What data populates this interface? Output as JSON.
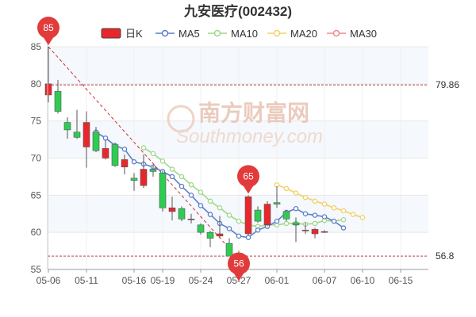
{
  "title": "九安医疗(002432)",
  "legend": [
    {
      "label": "日K",
      "color": "#e8272c",
      "kind": "candle"
    },
    {
      "label": "MA5",
      "color": "#5b7ec7",
      "kind": "line"
    },
    {
      "label": "MA10",
      "color": "#9fd88a",
      "kind": "line"
    },
    {
      "label": "MA20",
      "color": "#f4d067",
      "kind": "line"
    },
    {
      "label": "MA30",
      "color": "#ef8a8a",
      "kind": "line"
    }
  ],
  "watermark": {
    "cn": "南方财富网",
    "en": "Southmoney.com"
  },
  "colors": {
    "up": "#e8272c",
    "down": "#2ecc52",
    "grid": "#e8e8e8",
    "band": "#f5f8fc",
    "hline": "#b84040"
  },
  "chart_data": {
    "type": "candlestick",
    "title": "九安医疗(002432)",
    "ylim": [
      55,
      85
    ],
    "y_ticks": [
      55,
      60,
      65,
      70,
      75,
      80,
      85
    ],
    "x_tick_labels": [
      "05-06",
      "05-11",
      "05-16",
      "05-19",
      "05-24",
      "05-27",
      "06-01",
      "06-07",
      "06-10",
      "06-15"
    ],
    "x_tick_index": [
      0,
      4,
      9,
      12,
      16,
      20,
      24,
      29,
      33,
      37
    ],
    "candles": [
      {
        "o": 78.5,
        "c": 80.0,
        "h": 85.0,
        "l": 77.5
      },
      {
        "o": 79.0,
        "c": 76.3,
        "h": 80.5,
        "l": 76.0
      },
      {
        "o": 74.8,
        "c": 73.8,
        "h": 75.5,
        "l": 72.6
      },
      {
        "o": 73.5,
        "c": 72.8,
        "h": 76.5,
        "l": 72.6
      },
      {
        "o": 71.5,
        "c": 74.8,
        "h": 76.3,
        "l": 68.7
      },
      {
        "o": 73.5,
        "c": 71.0,
        "h": 74.2,
        "l": 70.8
      },
      {
        "o": 70.0,
        "c": 71.3,
        "h": 72.5,
        "l": 69.8
      },
      {
        "o": 71.8,
        "c": 69.0,
        "h": 72.0,
        "l": 68.8
      },
      {
        "o": 68.8,
        "c": 69.8,
        "h": 70.5,
        "l": 67.8
      },
      {
        "o": 67.3,
        "c": 67.0,
        "h": 68.0,
        "l": 65.6
      },
      {
        "o": 66.3,
        "c": 68.5,
        "h": 70.5,
        "l": 66.0
      },
      {
        "o": 68.5,
        "c": 68.2,
        "h": 69.0,
        "l": 67.5
      },
      {
        "o": 68.0,
        "c": 63.3,
        "h": 68.3,
        "l": 62.8
      },
      {
        "o": 62.8,
        "c": 63.3,
        "h": 64.8,
        "l": 61.6
      },
      {
        "o": 63.2,
        "c": 61.8,
        "h": 63.5,
        "l": 61.5
      },
      {
        "o": 61.8,
        "c": 61.8,
        "h": 62.5,
        "l": 61.2
      },
      {
        "o": 61.0,
        "c": 60.0,
        "h": 61.2,
        "l": 59.7
      },
      {
        "o": 60.0,
        "c": 59.2,
        "h": 60.2,
        "l": 58.0
      },
      {
        "o": 59.5,
        "c": 59.8,
        "h": 62.2,
        "l": 59.3
      },
      {
        "o": 58.5,
        "c": 56.8,
        "h": 59.2,
        "l": 56.8
      },
      {
        "o": 56.8,
        "c": 57.2,
        "h": 57.5,
        "l": 56.0
      },
      {
        "o": 59.8,
        "c": 64.8,
        "h": 65.0,
        "l": 59.6
      },
      {
        "o": 63.0,
        "c": 61.5,
        "h": 63.5,
        "l": 61.3
      },
      {
        "o": 61.0,
        "c": 63.8,
        "h": 64.2,
        "l": 60.8
      },
      {
        "o": 64.0,
        "c": 63.8,
        "h": 66.2,
        "l": 63.3
      },
      {
        "o": 62.8,
        "c": 61.8,
        "h": 63.0,
        "l": 61.5
      },
      {
        "o": 61.3,
        "c": 61.0,
        "h": 62.0,
        "l": 58.7
      },
      {
        "o": 60.2,
        "c": 60.3,
        "h": 61.3,
        "l": 59.8
      },
      {
        "o": 59.8,
        "c": 60.4,
        "h": 60.6,
        "l": 59.2
      },
      {
        "o": 60.1,
        "c": 60.1,
        "h": 60.3,
        "l": 59.9
      }
    ],
    "candle_positions": [
      0,
      1,
      2,
      3,
      4,
      5,
      6,
      7,
      8,
      9,
      10,
      11,
      12,
      13,
      14,
      15,
      16,
      17,
      18,
      19,
      20,
      21,
      22,
      23,
      24,
      25,
      26,
      27,
      28,
      29
    ],
    "ma5": {
      "start": 5,
      "values": [
        73.5,
        72.7,
        71.7,
        71.2,
        69.5,
        69.2,
        68.8,
        68.2,
        67.5,
        66.2,
        65.0,
        63.6,
        62.4,
        61.2,
        60.5,
        59.5,
        59.3,
        60.3,
        60.8,
        61.5,
        62.7,
        63.2,
        62.5,
        62.3,
        62.1,
        61.5,
        60.6
      ]
    },
    "ma10": {
      "start": 10,
      "values": [
        71.4,
        70.6,
        69.6,
        68.5,
        67.5,
        66.4,
        65.4,
        64.2,
        63.3,
        62.3,
        61.5,
        61.0,
        60.8,
        61.0,
        61.0,
        61.2,
        61.2,
        61.1,
        61.2,
        61.6,
        61.5,
        61.7
      ]
    },
    "ma20": {
      "start": 24,
      "values": [
        66.4,
        65.9,
        65.3,
        64.7,
        64.2,
        63.8,
        63.3,
        62.9,
        62.4,
        62.0
      ]
    },
    "ma30": {
      "start": 0,
      "values": [
        85.0,
        81.9,
        78.8,
        75.8,
        72.7,
        69.6,
        66.5,
        63.4,
        60.3,
        57.3,
        56.4
      ]
    },
    "ma30_positions": [
      0,
      2,
      4,
      6,
      8,
      10,
      12,
      14,
      16,
      18,
      20
    ],
    "hlines": [
      {
        "value": 79.86,
        "label": "79.86"
      },
      {
        "value": 56.8,
        "label": "56.8"
      }
    ],
    "markers": [
      {
        "index": 0,
        "value": 85,
        "label": "85",
        "direction": "down"
      },
      {
        "index": 20,
        "value": 56,
        "label": "56",
        "direction": "up"
      },
      {
        "index": 21,
        "value": 65,
        "label": "65",
        "direction": "down"
      }
    ]
  }
}
